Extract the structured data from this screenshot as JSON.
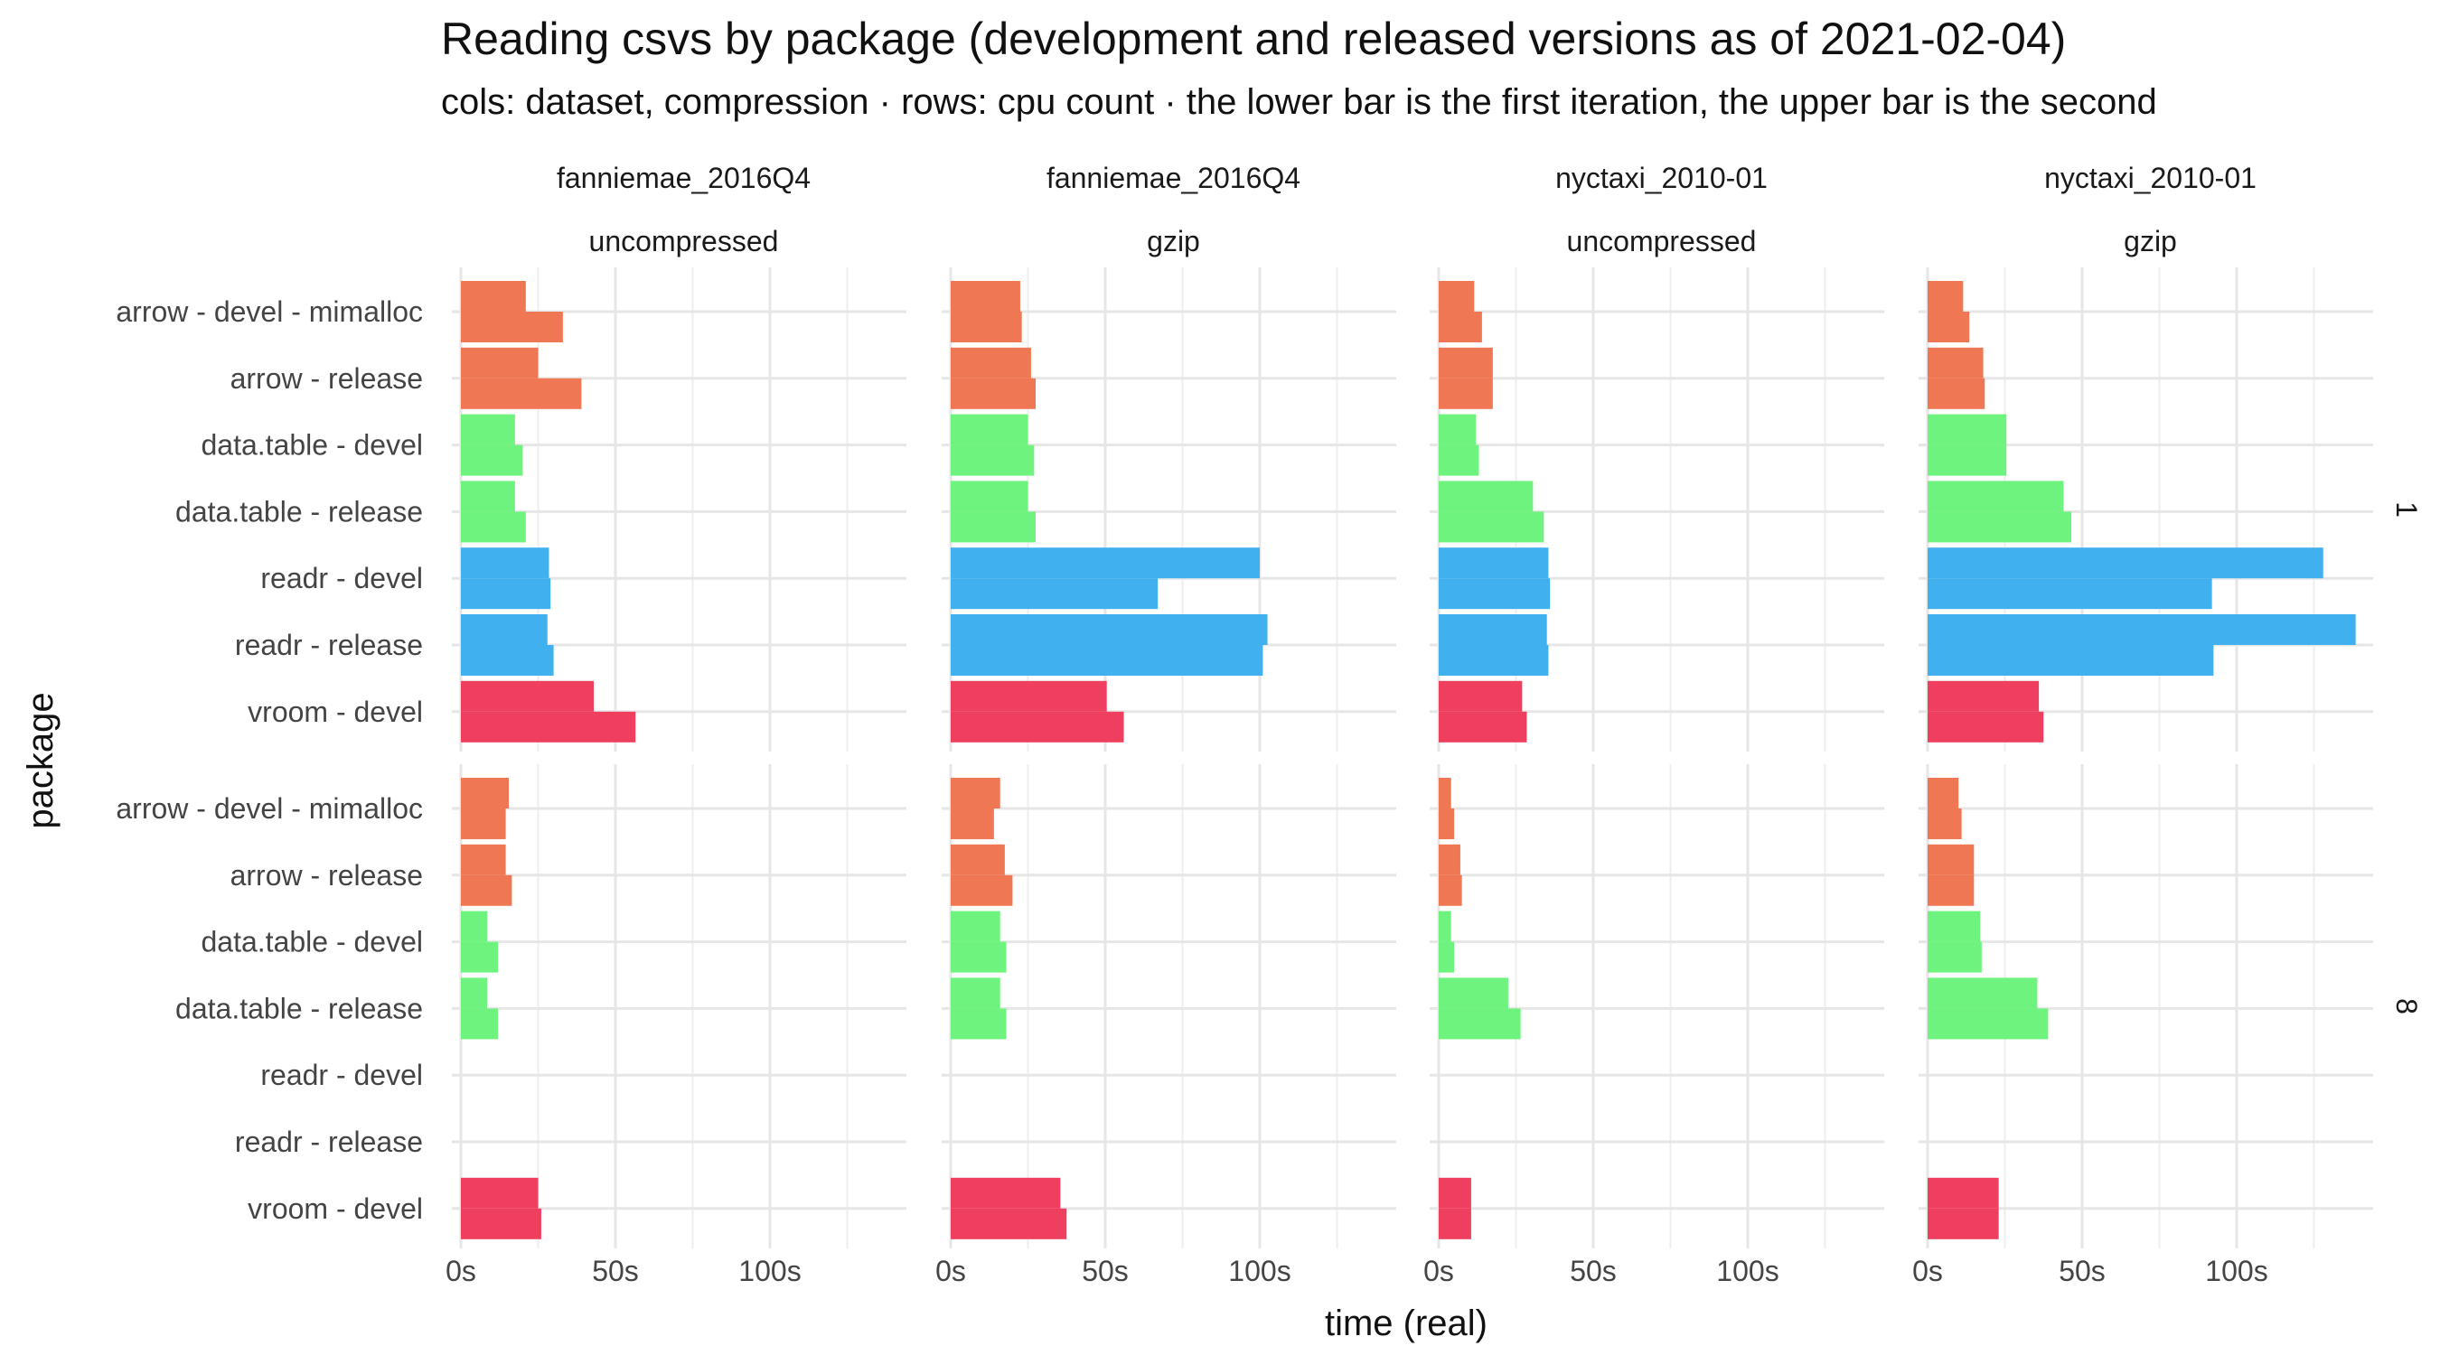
{
  "title": "Reading csvs by package (development and released versions as of 2021-02-04)",
  "subtitle": "cols: dataset, compression · rows: cpu count · the lower bar is the first iteration, the upper bar is the second",
  "colors": {
    "arrow - devel - mimalloc": "#F07753",
    "arrow - release": "#F07753",
    "data.table - devel": "#6EF47E",
    "data.table - release": "#6EF47E",
    "readr - devel": "#40B0EE",
    "readr - release": "#40B0EE",
    "vroom - devel": "#EE3F5F"
  },
  "chart_data": {
    "type": "bar",
    "orientation": "horizontal",
    "xlabel": "time (real)",
    "ylabel": "package",
    "xlim": [
      0,
      140
    ],
    "x_ticks": [
      0,
      50,
      100
    ],
    "x_tick_labels": [
      "0s",
      "50s",
      "100s"
    ],
    "grid": true,
    "categories": [
      "arrow - devel - mimalloc",
      "arrow - release",
      "data.table - devel",
      "data.table - release",
      "readr - devel",
      "readr - release",
      "vroom - devel"
    ],
    "facet_cols": [
      {
        "dataset": "fanniemae_2016Q4",
        "compression": "uncompressed"
      },
      {
        "dataset": "fanniemae_2016Q4",
        "compression": "gzip"
      },
      {
        "dataset": "nyctaxi_2010-01",
        "compression": "uncompressed"
      },
      {
        "dataset": "nyctaxi_2010-01",
        "compression": "gzip"
      }
    ],
    "facet_rows": [
      "1",
      "8"
    ],
    "panels": [
      {
        "cpu": "1",
        "dataset": "fanniemae_2016Q4",
        "compression": "uncompressed",
        "first_iteration": [
          33,
          39,
          20,
          21,
          29,
          30,
          56.5
        ],
        "second_iteration": [
          21,
          25,
          17.5,
          17.5,
          28.5,
          28,
          43
        ]
      },
      {
        "cpu": "1",
        "dataset": "fanniemae_2016Q4",
        "compression": "gzip",
        "first_iteration": [
          23,
          27.5,
          27,
          27.5,
          67,
          101,
          56
        ],
        "second_iteration": [
          22.5,
          26,
          25,
          25,
          100,
          102.5,
          50.5
        ]
      },
      {
        "cpu": "1",
        "dataset": "nyctaxi_2010-01",
        "compression": "uncompressed",
        "first_iteration": [
          14,
          17.5,
          13,
          34,
          36,
          35.5,
          28.5
        ],
        "second_iteration": [
          11.5,
          17.5,
          12,
          30.5,
          35.5,
          35,
          27
        ]
      },
      {
        "cpu": "1",
        "dataset": "nyctaxi_2010-01",
        "compression": "gzip",
        "first_iteration": [
          13.5,
          18.5,
          25.5,
          46.5,
          92,
          92.5,
          37.5
        ],
        "second_iteration": [
          11.5,
          18,
          25.5,
          44,
          128,
          138.5,
          36
        ]
      },
      {
        "cpu": "8",
        "dataset": "fanniemae_2016Q4",
        "compression": "uncompressed",
        "first_iteration": [
          14.5,
          16.5,
          12,
          12,
          null,
          null,
          26
        ],
        "second_iteration": [
          15.5,
          14.5,
          8.5,
          8.5,
          null,
          null,
          25
        ]
      },
      {
        "cpu": "8",
        "dataset": "fanniemae_2016Q4",
        "compression": "gzip",
        "first_iteration": [
          14,
          20,
          18,
          18,
          null,
          null,
          37.5
        ],
        "second_iteration": [
          16,
          17.5,
          16,
          16,
          null,
          null,
          35.5
        ]
      },
      {
        "cpu": "8",
        "dataset": "nyctaxi_2010-01",
        "compression": "uncompressed",
        "first_iteration": [
          5,
          7.5,
          5,
          26.5,
          null,
          null,
          10.5
        ],
        "second_iteration": [
          4,
          7,
          4,
          22.5,
          null,
          null,
          10.5
        ]
      },
      {
        "cpu": "8",
        "dataset": "nyctaxi_2010-01",
        "compression": "gzip",
        "first_iteration": [
          11,
          15,
          17.5,
          39,
          null,
          null,
          23
        ],
        "second_iteration": [
          10,
          15,
          17,
          35.5,
          null,
          null,
          23
        ]
      }
    ]
  }
}
